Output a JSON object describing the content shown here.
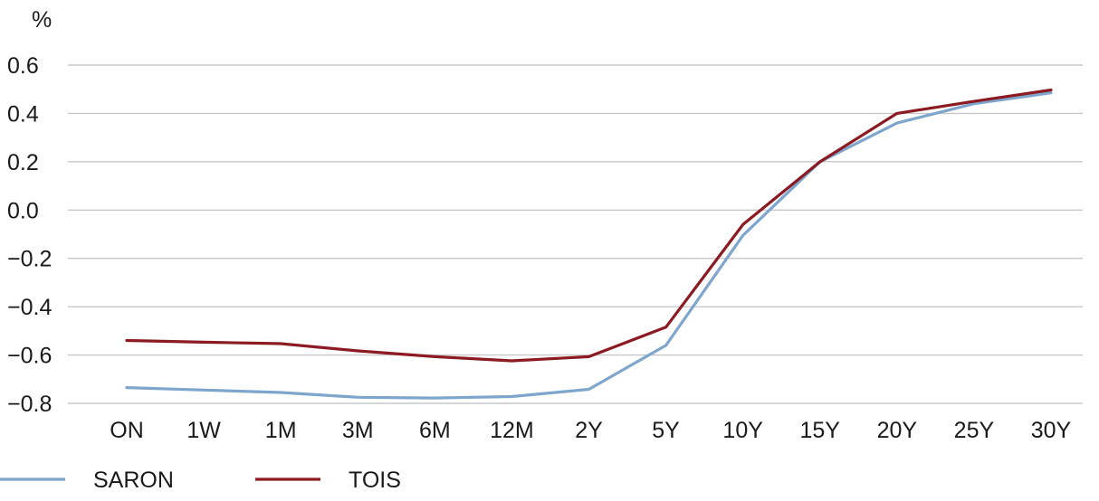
{
  "chart_data": {
    "type": "line",
    "ylabel": "%",
    "categories": [
      "ON",
      "1W",
      "1M",
      "3M",
      "6M",
      "12M",
      "2Y",
      "5Y",
      "10Y",
      "15Y",
      "20Y",
      "25Y",
      "30Y"
    ],
    "ylim": [
      -0.8,
      0.6
    ],
    "yticks": [
      "0.6",
      "0.4",
      "0.2",
      "0.0",
      "−0.2",
      "−0.4",
      "−0.6",
      "−0.8"
    ],
    "ytick_values": [
      0.6,
      0.4,
      0.2,
      0.0,
      -0.2,
      -0.4,
      -0.6,
      -0.8
    ],
    "grid": true,
    "legend_position": "bottom-left",
    "series": [
      {
        "name": "SARON",
        "color": "#7ea6cc",
        "values": [
          -0.735,
          -0.745,
          -0.755,
          -0.775,
          -0.778,
          -0.772,
          -0.742,
          -0.56,
          -0.105,
          0.2,
          0.36,
          0.44,
          0.485
        ]
      },
      {
        "name": "TOIS",
        "color": "#8b1a22",
        "values": [
          -0.54,
          -0.547,
          -0.553,
          -0.583,
          -0.607,
          -0.624,
          -0.607,
          -0.485,
          -0.06,
          0.2,
          0.4,
          0.45,
          0.497
        ]
      }
    ]
  }
}
